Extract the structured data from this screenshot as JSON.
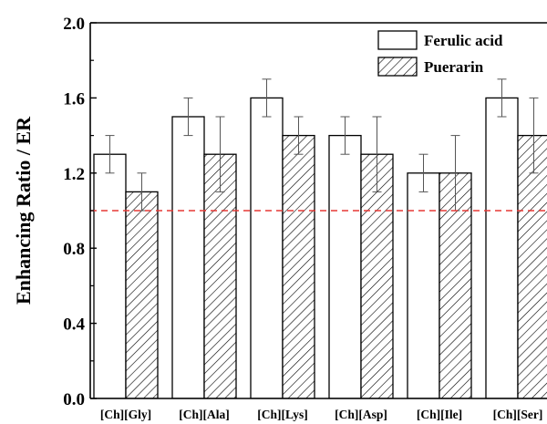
{
  "chart_data": {
    "type": "bar",
    "title": "",
    "xlabel": "",
    "ylabel": "Enhancing Ratio / ER",
    "ylim": [
      0.0,
      2.0
    ],
    "yticks": [
      "0.0",
      "0.4",
      "0.8",
      "1.2",
      "1.6",
      "2.0"
    ],
    "ytick_values": [
      0.0,
      0.4,
      0.8,
      1.2,
      1.6,
      2.0
    ],
    "categories": [
      "[Ch][Gly]",
      "[Ch][Ala]",
      "[Ch][Lys]",
      "[Ch][Asp]",
      "[Ch][Ile]",
      "[Ch][Ser]"
    ],
    "series": [
      {
        "name": "Ferulic acid",
        "fill": "open",
        "values": [
          1.3,
          1.5,
          1.6,
          1.4,
          1.2,
          1.6
        ],
        "errors": [
          0.1,
          0.1,
          0.1,
          0.1,
          0.1,
          0.1
        ]
      },
      {
        "name": "Puerarin",
        "fill": "hatched",
        "values": [
          1.1,
          1.3,
          1.4,
          1.3,
          1.2,
          1.4
        ],
        "errors": [
          0.1,
          0.2,
          0.1,
          0.2,
          0.2,
          0.2
        ]
      }
    ],
    "reference_line": {
      "y": 1.0,
      "color": "#e53935",
      "style": "dashed"
    },
    "legend": "top-right",
    "grid": false
  }
}
